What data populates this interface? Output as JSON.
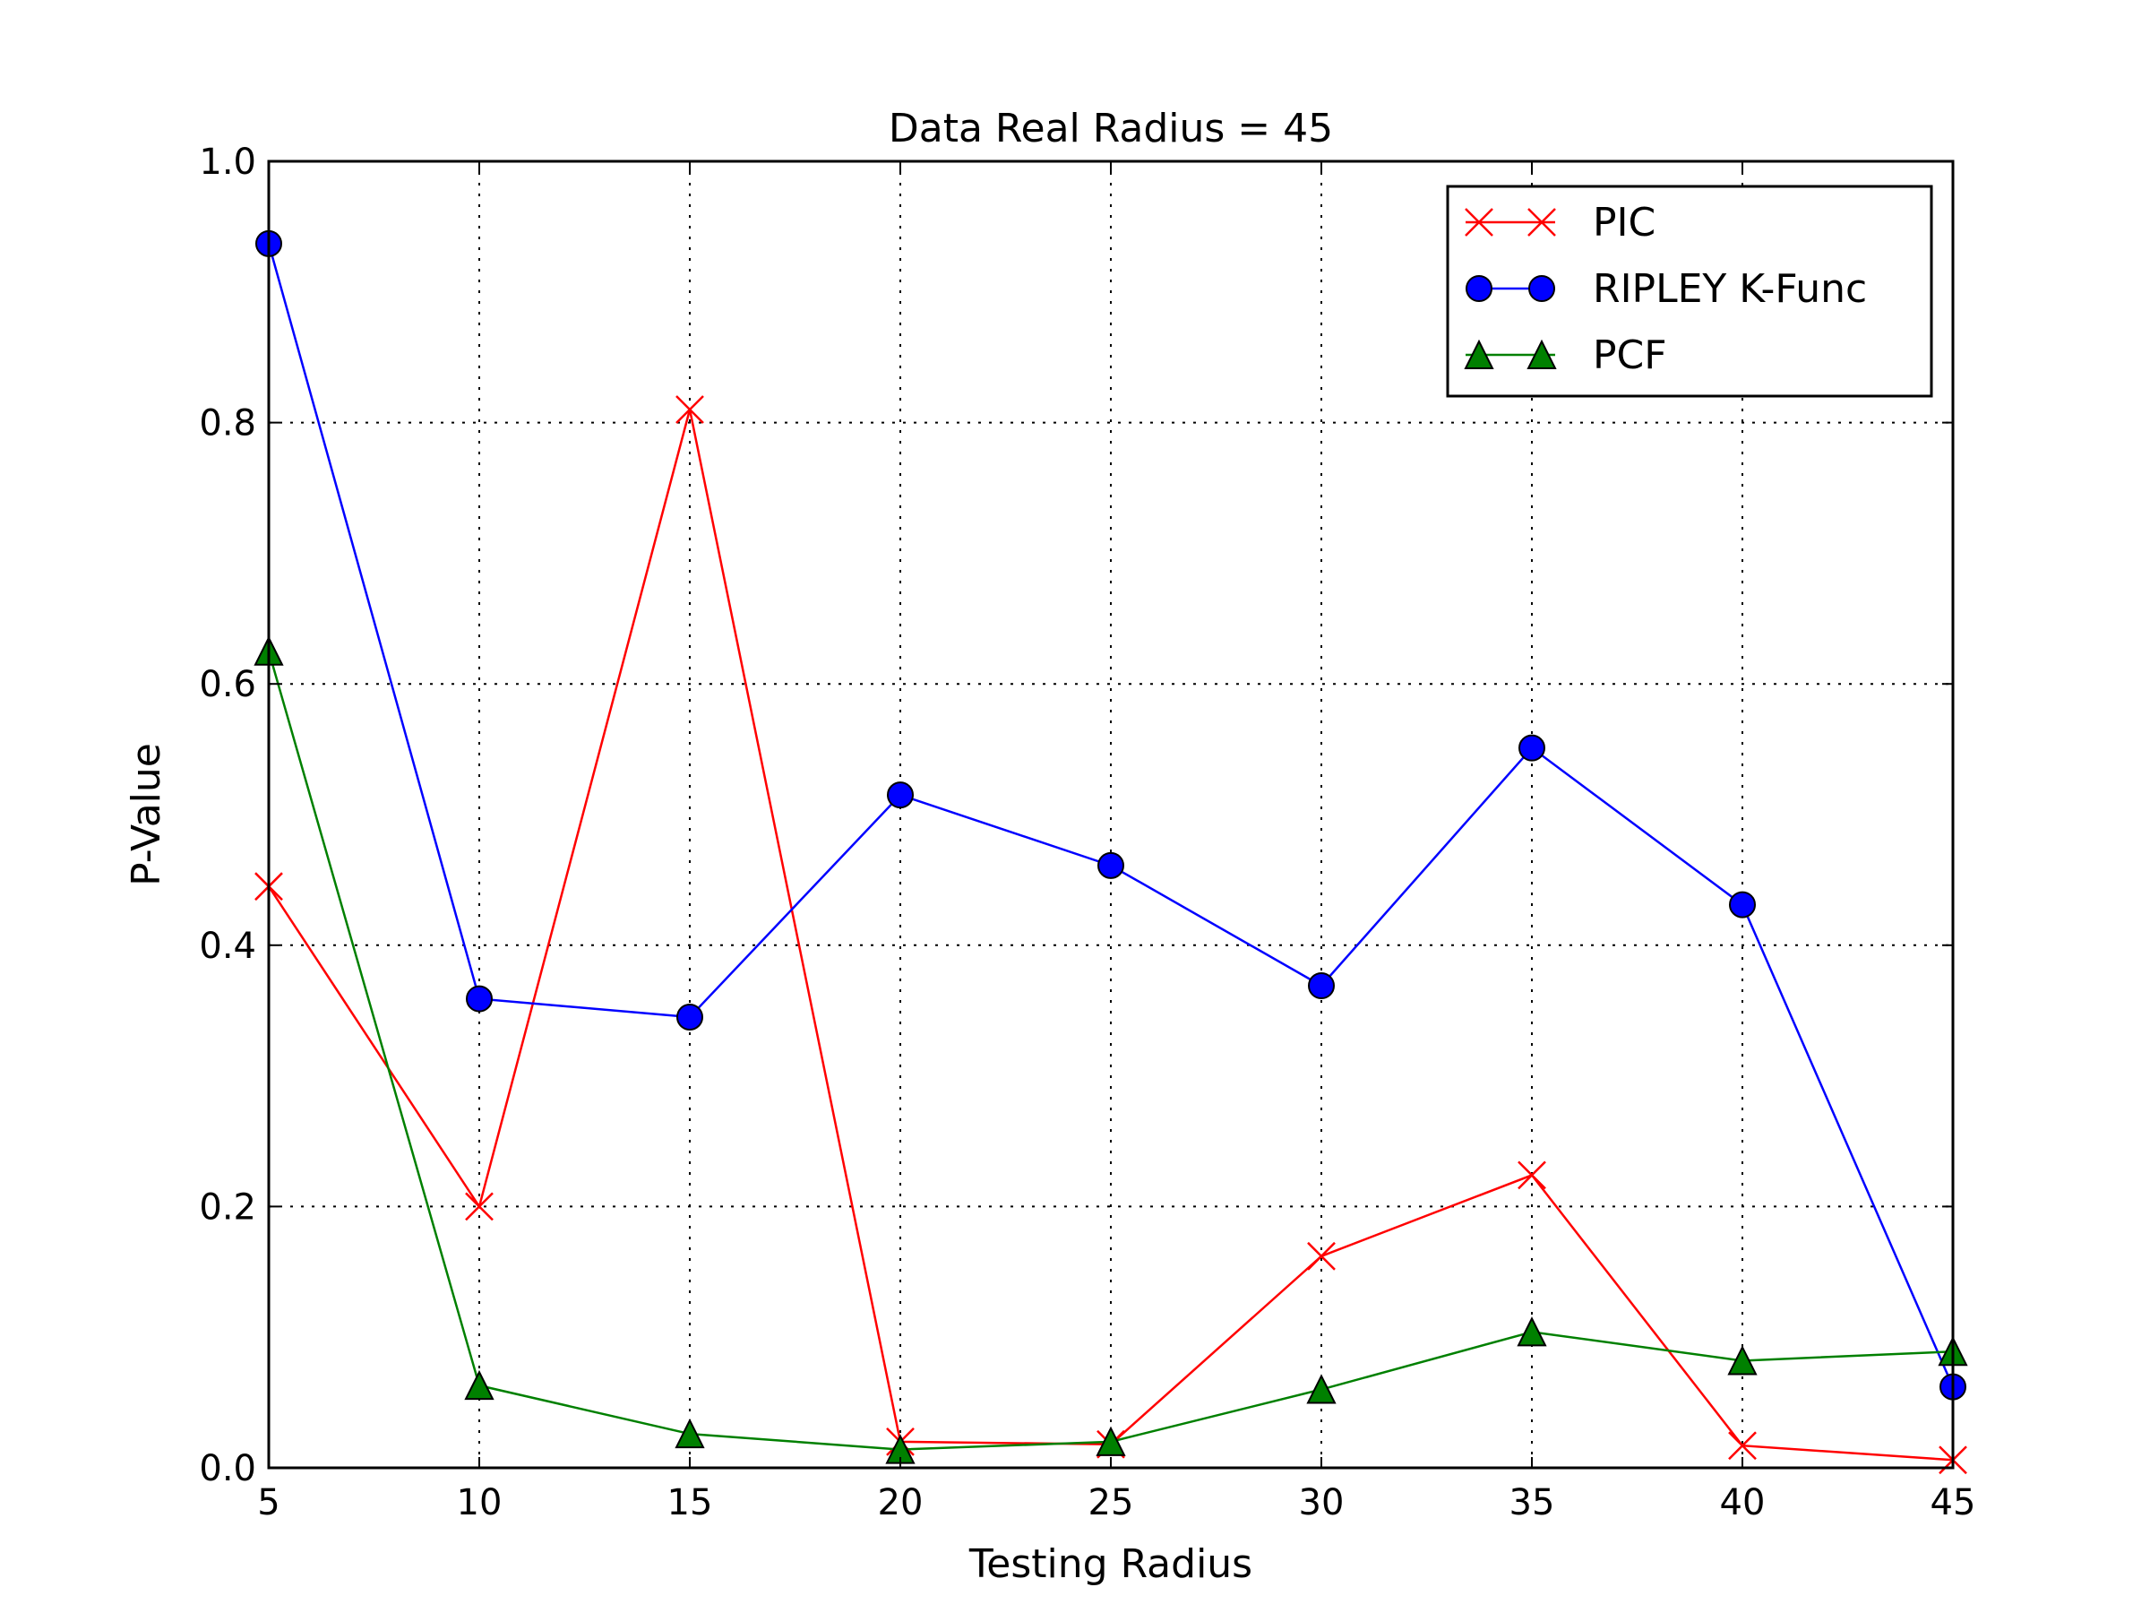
{
  "chart_data": {
    "type": "line",
    "title": "Data Real Radius = 45",
    "xlabel": "Testing Radius",
    "ylabel": "P-Value",
    "x": [
      5,
      10,
      15,
      20,
      25,
      30,
      35,
      40,
      45
    ],
    "xlim": [
      5,
      45
    ],
    "ylim": [
      0,
      1.0
    ],
    "xticks": [
      "5",
      "10",
      "15",
      "20",
      "25",
      "30",
      "35",
      "40",
      "45"
    ],
    "yticks": [
      "0.0",
      "0.2",
      "0.4",
      "0.6",
      "0.8",
      "1.0"
    ],
    "grid": true,
    "legend_position": "top-right",
    "series": [
      {
        "name": "PIC",
        "color": "#ff0000",
        "marker": "x",
        "values": [
          0.445,
          0.2,
          0.81,
          0.02,
          0.018,
          0.162,
          0.224,
          0.017,
          0.006
        ]
      },
      {
        "name": "RIPLEY K-Func",
        "color": "#0000ff",
        "marker": "circle",
        "values": [
          0.937,
          0.359,
          0.345,
          0.515,
          0.461,
          0.369,
          0.551,
          0.431,
          0.062
        ]
      },
      {
        "name": "PCF",
        "color": "#008000",
        "marker": "triangle",
        "values": [
          0.625,
          0.063,
          0.026,
          0.014,
          0.02,
          0.06,
          0.104,
          0.082,
          0.089
        ]
      }
    ]
  }
}
